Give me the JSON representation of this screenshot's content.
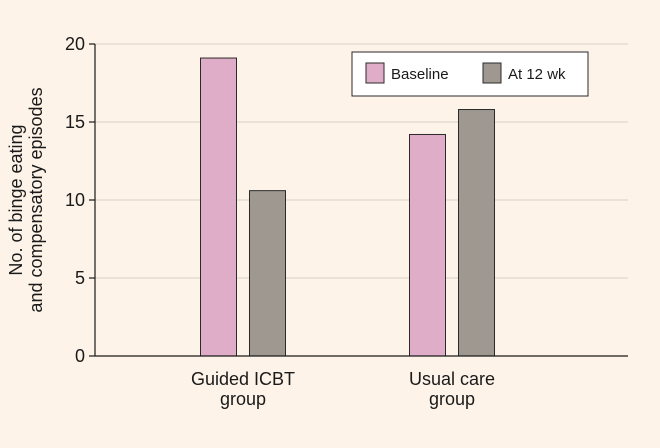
{
  "chart_data": {
    "type": "bar",
    "title": "",
    "ylabel_lines": [
      "No. of binge eating",
      "and compensatory episodes"
    ],
    "categories": [
      {
        "lines": [
          "Guided ICBT",
          "group"
        ]
      },
      {
        "lines": [
          "Usual care",
          "group"
        ]
      }
    ],
    "series": [
      {
        "name": "Baseline",
        "color": "#dfadc8",
        "values": [
          19.1,
          14.2
        ]
      },
      {
        "name": "At 12 wk",
        "color": "#9e9891",
        "values": [
          10.6,
          15.8
        ]
      }
    ],
    "ylim": [
      0,
      20
    ],
    "yticks": [
      0,
      5,
      10,
      15,
      20
    ],
    "grid": true,
    "legend_position": "top-right"
  }
}
